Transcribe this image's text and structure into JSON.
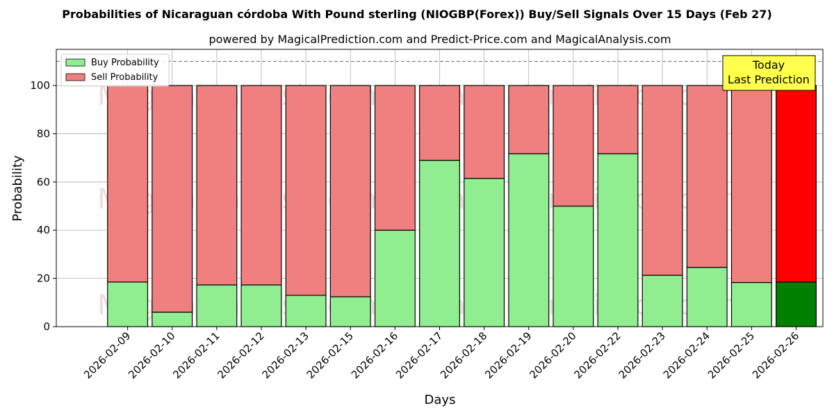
{
  "chart_data": {
    "type": "bar",
    "stacked": true,
    "title": "Probabilities of Nicaraguan córdoba With Pound sterling (NIOGBP(Forex)) Buy/Sell Signals Over 15 Days (Feb 27)",
    "subtitle": "powered by MagicalPrediction.com and Predict-Price.com and MagicalAnalysis.com",
    "xlabel": "Days",
    "ylabel": "Probability",
    "ylim": [
      0,
      115
    ],
    "yticks": [
      0,
      20,
      40,
      60,
      80,
      100
    ],
    "grid": true,
    "legend_placement": "top-left",
    "categories": [
      "2026-02-09",
      "2026-02-10",
      "2026-02-11",
      "2026-02-12",
      "2026-02-13",
      "2026-02-15",
      "2026-02-16",
      "2026-02-17",
      "2026-02-18",
      "2026-02-19",
      "2026-02-20",
      "2026-02-22",
      "2026-02-23",
      "2026-02-24",
      "2026-02-25",
      "2026-02-26"
    ],
    "series": [
      {
        "name": "Buy Probability",
        "color": "#90ee90",
        "highlight_color": "#008000",
        "values": [
          18.5,
          6,
          17.3,
          17.3,
          13,
          12.4,
          40,
          69,
          61.5,
          71.7,
          50,
          71.7,
          21.3,
          24.6,
          18.3,
          18.5
        ]
      },
      {
        "name": "Sell Probability",
        "color": "#f08080",
        "highlight_color": "#ff0000",
        "values": [
          81.5,
          94,
          82.7,
          82.7,
          87,
          87.6,
          60,
          31,
          38.5,
          28.3,
          50,
          28.3,
          78.7,
          75.4,
          81.7,
          81.5
        ]
      }
    ],
    "highlight_index": 15,
    "reference_line": {
      "y": 110,
      "style": "dashed",
      "color": "#808080"
    },
    "annotation": {
      "lines": [
        "Today",
        "Last Prediction"
      ],
      "background": "#ffff4d",
      "placement": "top-right"
    },
    "watermarks": [
      "MagicalAnalysis.com",
      "MagicalPrediction.com"
    ]
  }
}
